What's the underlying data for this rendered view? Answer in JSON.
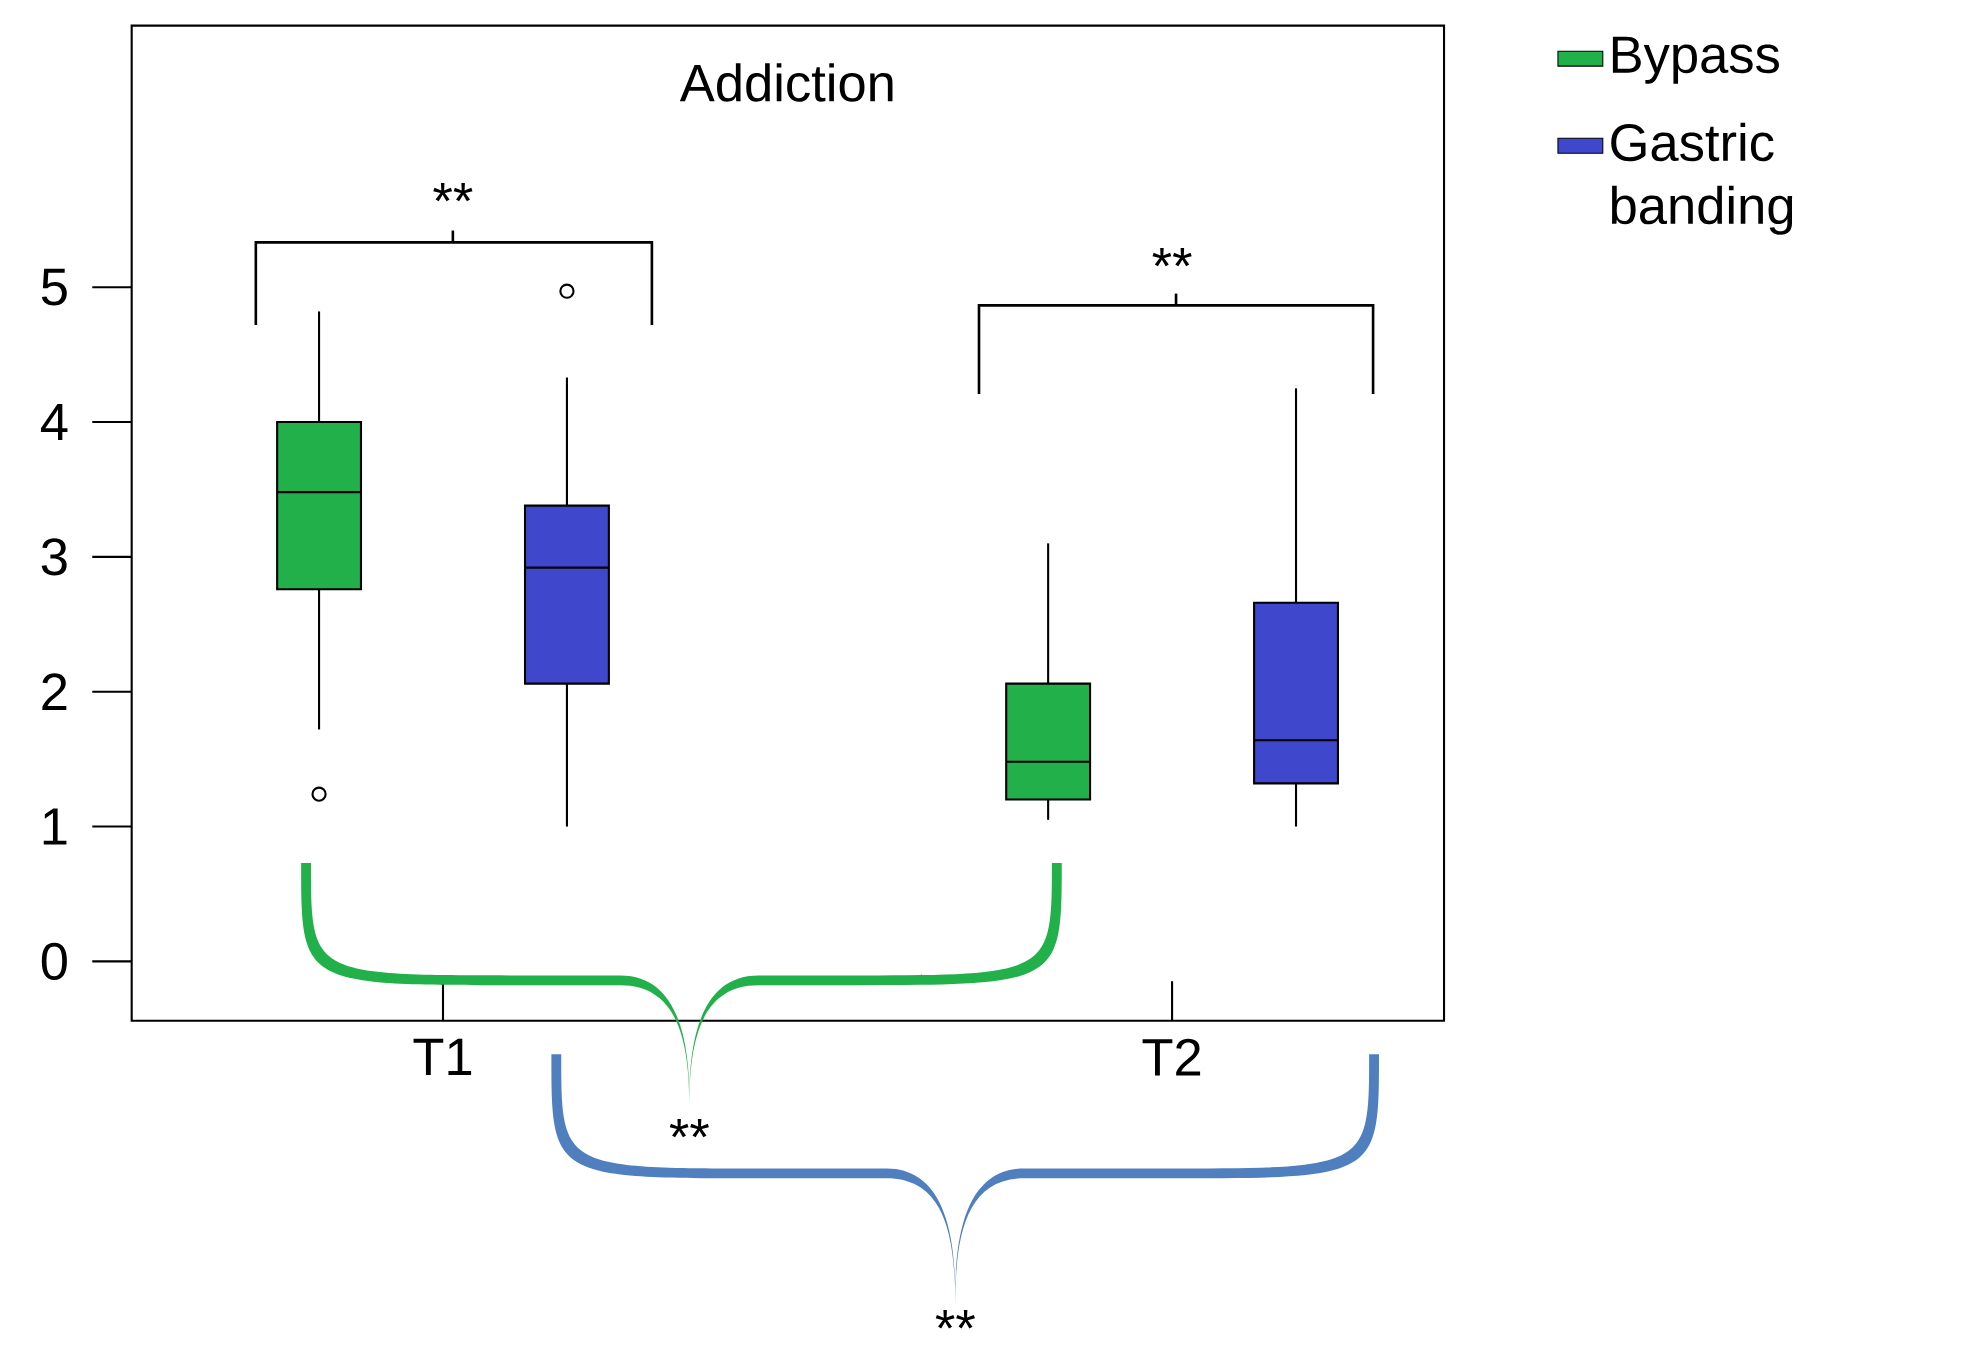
{
  "chart_data": {
    "type": "box",
    "title": "Addiction",
    "categories": [
      "T1",
      "T2"
    ],
    "ylim": [
      -0.44,
      6.94
    ],
    "yticks": [
      0,
      1,
      2,
      3,
      4,
      5
    ],
    "legend": "right",
    "series": [
      {
        "name": "Bypass",
        "color": "#22b04b",
        "boxes": [
          {
            "low": 1.72,
            "q1": 2.76,
            "median": 3.48,
            "q3": 4.0,
            "high": 4.82,
            "outliers": [
              1.24
            ]
          },
          {
            "low": 1.05,
            "q1": 1.2,
            "median": 1.48,
            "q3": 2.06,
            "high": 3.1
          }
        ]
      },
      {
        "name": "Gastric banding",
        "color": "#3f48cc",
        "boxes": [
          {
            "low": 1.0,
            "q1": 2.06,
            "median": 2.92,
            "q3": 3.38,
            "high": 4.33,
            "outliers": [
              4.97
            ]
          },
          {
            "low": 1.0,
            "q1": 1.32,
            "median": 1.64,
            "q3": 2.66,
            "high": 4.25
          }
        ]
      }
    ],
    "annotations": [
      "**",
      "**",
      "**",
      "**"
    ]
  }
}
